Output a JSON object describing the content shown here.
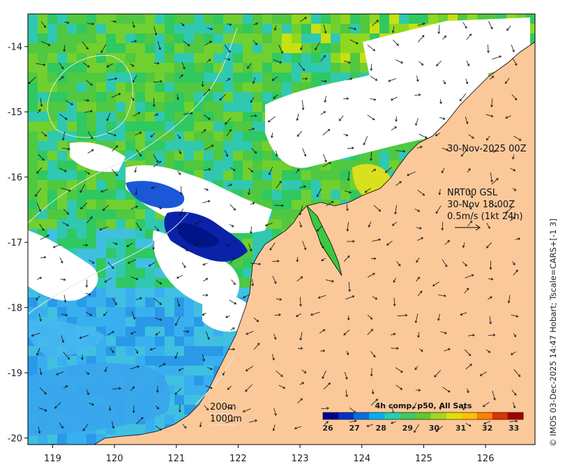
{
  "map": {
    "lon_range": [
      118.6,
      126.8
    ],
    "lat_range": [
      -20.1,
      -13.5
    ],
    "x_ticks": [
      "119",
      "120",
      "121",
      "122",
      "123",
      "124",
      "125",
      "126"
    ],
    "y_ticks": [
      "-14",
      "-15",
      "-16",
      "-17",
      "-18",
      "-19",
      "-20"
    ],
    "colors": {
      "land": "#fbc89a",
      "no_data": "#ffffff",
      "coast": "#000000",
      "arrows": "#111111",
      "contours": "#e8e8e8"
    }
  },
  "annotations": {
    "chl_time": "30-Nov-2025 00Z",
    "current_source": "NRT00 GSL",
    "current_time": "30-Nov 18:00Z",
    "arrow_scale": "0.5m/s (1kt 24h)",
    "isobath_200": "200m",
    "isobath_1000": "1000m"
  },
  "colorbar": {
    "title": "4h comp, p50, All Sats",
    "labels": [
      "26",
      "27",
      "28",
      "29",
      "30",
      "31",
      "32",
      "33"
    ],
    "colors": [
      "#00008b",
      "#0030c8",
      "#0070e0",
      "#00b0f0",
      "#20d0b0",
      "#40c860",
      "#60c830",
      "#a0d820",
      "#e0e000",
      "#ffc000",
      "#ff8000",
      "#e03000",
      "#a00000"
    ]
  },
  "credit": "© IMOS 03-Dec-2025 14:47 Hobart; Tscale=CARS+[-1 3]"
}
